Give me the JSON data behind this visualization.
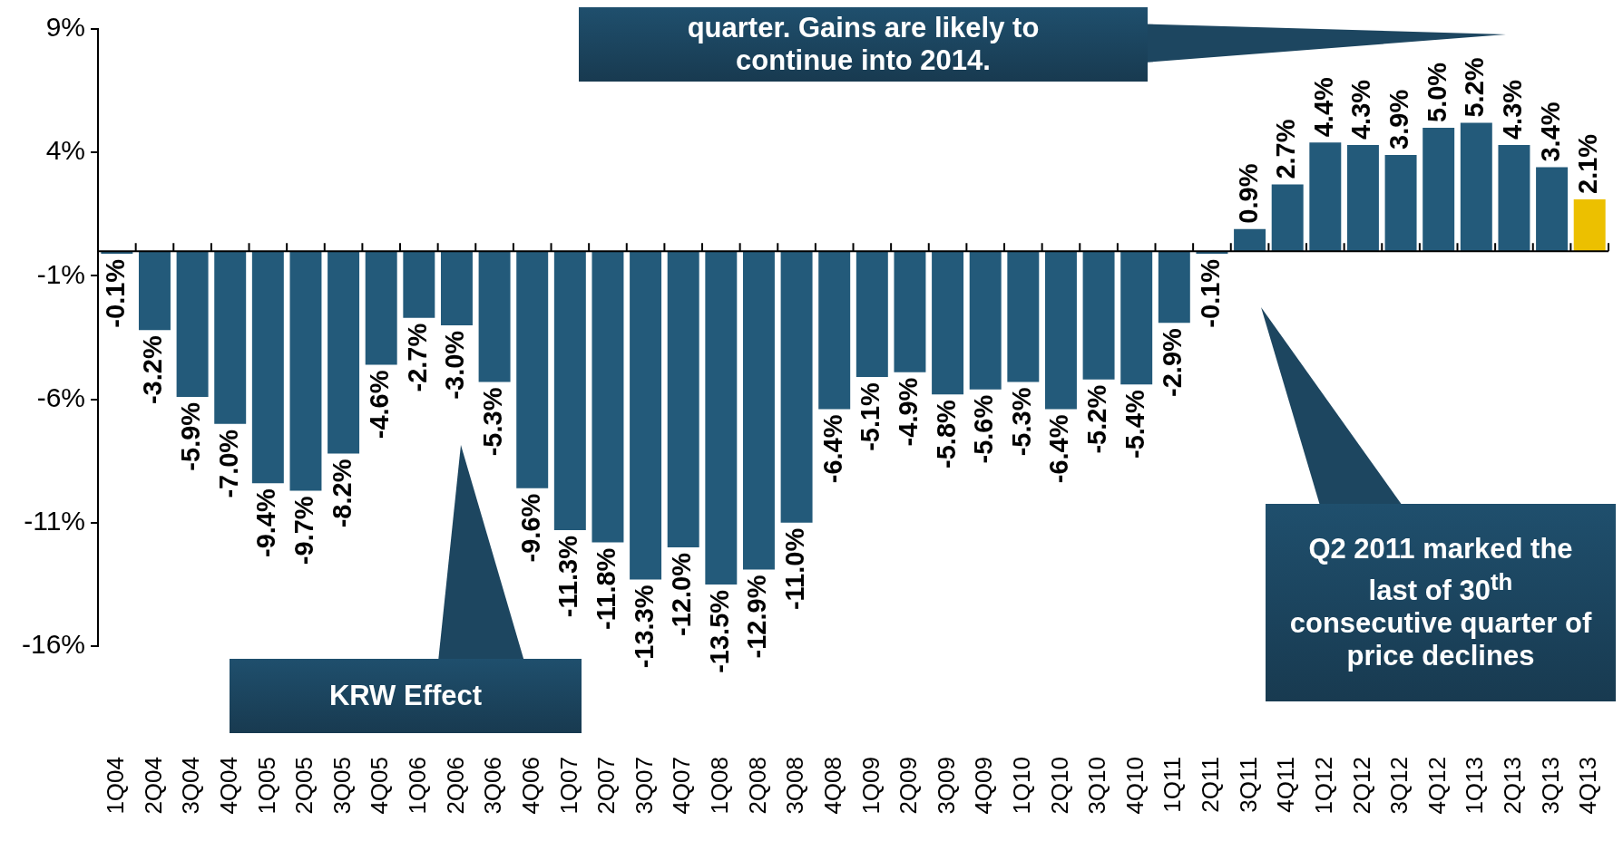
{
  "chart_data": {
    "type": "bar",
    "categories": [
      "1Q04",
      "2Q04",
      "3Q04",
      "4Q04",
      "1Q05",
      "2Q05",
      "3Q05",
      "4Q05",
      "1Q06",
      "2Q06",
      "3Q06",
      "4Q06",
      "1Q07",
      "2Q07",
      "3Q07",
      "4Q07",
      "1Q08",
      "2Q08",
      "3Q08",
      "4Q08",
      "1Q09",
      "2Q09",
      "3Q09",
      "4Q09",
      "1Q10",
      "2Q10",
      "3Q10",
      "4Q10",
      "1Q11",
      "2Q11",
      "3Q11",
      "4Q11",
      "1Q12",
      "2Q12",
      "3Q12",
      "4Q12",
      "1Q13",
      "2Q13",
      "3Q13",
      "4Q13"
    ],
    "values": [
      -0.1,
      -3.2,
      -5.9,
      -7.0,
      -9.4,
      -9.7,
      -8.2,
      -4.6,
      -2.7,
      -3.0,
      -5.3,
      -9.6,
      -11.3,
      -11.8,
      -13.3,
      -12.0,
      -13.5,
      -12.9,
      -11.0,
      -6.4,
      -5.1,
      -4.9,
      -5.8,
      -5.6,
      -5.3,
      -6.4,
      -5.2,
      -5.4,
      -2.9,
      -0.1,
      0.9,
      2.7,
      4.4,
      4.3,
      3.9,
      5.0,
      5.2,
      4.3,
      3.4,
      2.1
    ],
    "value_labels": [
      "-0.1%",
      "-3.2%",
      "-5.9%",
      "-7.0%",
      "-9.4%",
      "-9.7%",
      "-8.2%",
      "-4.6%",
      "-2.7%",
      "-3.0%",
      "-5.3%",
      "-9.6%",
      "-11.3%",
      "-11.8%",
      "-13.3%",
      "-12.0%",
      "-13.5%",
      "-12.9%",
      "-11.0%",
      "-6.4%",
      "-5.1%",
      "-4.9%",
      "-5.8%",
      "-5.6%",
      "-5.3%",
      "-6.4%",
      "-5.2%",
      "-5.4%",
      "-2.9%",
      "-0.1%",
      "0.9%",
      "2.7%",
      "4.4%",
      "4.3%",
      "3.9%",
      "5.0%",
      "5.2%",
      "4.3%",
      "3.4%",
      "2.1%"
    ],
    "colors": [
      "#235a7a",
      "#235a7a",
      "#235a7a",
      "#235a7a",
      "#235a7a",
      "#235a7a",
      "#235a7a",
      "#235a7a",
      "#235a7a",
      "#235a7a",
      "#235a7a",
      "#235a7a",
      "#235a7a",
      "#235a7a",
      "#235a7a",
      "#235a7a",
      "#235a7a",
      "#235a7a",
      "#235a7a",
      "#235a7a",
      "#235a7a",
      "#235a7a",
      "#235a7a",
      "#235a7a",
      "#235a7a",
      "#235a7a",
      "#235a7a",
      "#235a7a",
      "#235a7a",
      "#235a7a",
      "#235a7a",
      "#235a7a",
      "#235a7a",
      "#235a7a",
      "#235a7a",
      "#235a7a",
      "#235a7a",
      "#235a7a",
      "#235a7a",
      "#ecc000"
    ],
    "ylim": [
      -16,
      9
    ],
    "yticks": [
      {
        "value": -16,
        "label": "-16%"
      },
      {
        "value": -11,
        "label": "-11%"
      },
      {
        "value": -6,
        "label": "-6%"
      },
      {
        "value": -1,
        "label": "-1%"
      },
      {
        "value": 4,
        "label": "4%"
      },
      {
        "value": 9,
        "label": "9%"
      }
    ],
    "grid": false,
    "legend": false,
    "annotations": [
      "quarter. Gains are likely to continue into 2014.",
      "KRW Effect",
      "Q2 2011 marked the last of 30$^{th}$ consecutive quarter of price declines"
    ]
  }
}
